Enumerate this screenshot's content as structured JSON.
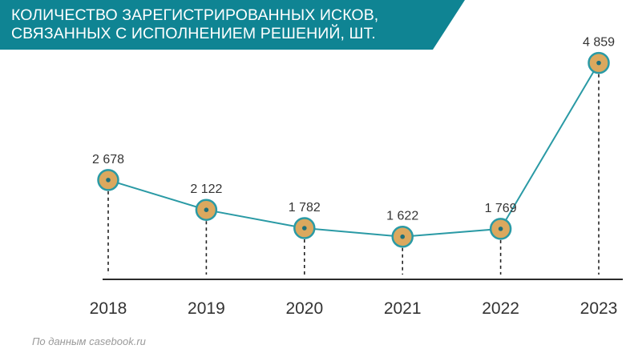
{
  "header": {
    "title_line1": "КОЛИЧЕСТВО ЗАРЕГИСТРИРОВАННЫХ ИСКОВ,",
    "title_line2": "СВЯЗАННЫХ С ИСПОЛНЕНИЕМ РЕШЕНИЙ, ШТ.",
    "banner_color": "#0f8493"
  },
  "source_note": "По данным casebook.ru",
  "colors": {
    "line": "#2a9aa5",
    "marker_fill": "#dba85e",
    "marker_ring": "#2a9aa5",
    "marker_dot": "#1d6f7a",
    "axis": "#2b2b2b",
    "dashed": "#222222"
  },
  "chart_data": {
    "type": "line",
    "title": "КОЛИЧЕСТВО ЗАРЕГИСТРИРОВАННЫХ ИСКОВ, СВЯЗАННЫХ С ИСПОЛНЕНИЕМ РЕШЕНИЙ, ШТ.",
    "categories": [
      "2018",
      "2019",
      "2020",
      "2021",
      "2022",
      "2023"
    ],
    "values": [
      2678,
      2122,
      1782,
      1622,
      1769,
      4859
    ],
    "data_labels": [
      "2 678",
      "2 122",
      "1 782",
      "1 622",
      "1 769",
      "4 859"
    ],
    "xlabel": "",
    "ylabel": "",
    "grid": false,
    "legend": "none"
  }
}
